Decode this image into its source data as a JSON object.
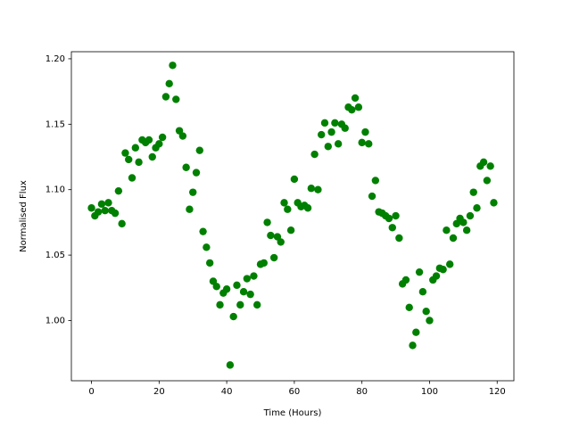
{
  "chart_data": {
    "type": "scatter",
    "x_label": "Time (Hours)",
    "y_label": "Normalised Flux",
    "x": [
      0,
      1,
      2,
      3,
      4,
      5,
      6,
      7,
      8,
      9,
      10,
      11,
      12,
      13,
      14,
      15,
      16,
      17,
      18,
      19,
      20,
      21,
      22,
      23,
      24,
      25,
      26,
      27,
      28,
      29,
      30,
      31,
      32,
      33,
      34,
      35,
      36,
      37,
      38,
      39,
      40,
      41,
      42,
      43,
      44,
      45,
      46,
      47,
      48,
      49,
      50,
      51,
      52,
      53,
      54,
      55,
      56,
      57,
      58,
      59,
      60,
      61,
      62,
      63,
      64,
      65,
      66,
      67,
      68,
      69,
      70,
      71,
      72,
      73,
      74,
      75,
      76,
      77,
      78,
      79,
      80,
      81,
      82,
      83,
      84,
      85,
      86,
      87,
      88,
      89,
      90,
      91,
      92,
      93,
      94,
      95,
      96,
      97,
      98,
      99,
      100,
      101,
      102,
      103,
      104,
      105,
      106,
      107,
      108,
      109,
      110,
      111,
      112,
      113,
      114,
      115,
      116,
      117,
      118,
      119
    ],
    "values": [
      1.086,
      1.08,
      1.083,
      1.089,
      1.084,
      1.09,
      1.084,
      1.082,
      1.099,
      1.074,
      1.128,
      1.123,
      1.109,
      1.132,
      1.121,
      1.138,
      1.136,
      1.138,
      1.125,
      1.132,
      1.135,
      1.14,
      1.171,
      1.181,
      1.195,
      1.169,
      1.145,
      1.141,
      1.117,
      1.085,
      1.098,
      1.113,
      1.13,
      1.068,
      1.056,
      1.044,
      1.03,
      1.026,
      1.012,
      1.021,
      1.024,
      0.966,
      1.003,
      1.027,
      1.012,
      1.022,
      1.032,
      1.02,
      1.034,
      1.012,
      1.043,
      1.044,
      1.075,
      1.065,
      1.048,
      1.064,
      1.06,
      1.09,
      1.085,
      1.069,
      1.108,
      1.09,
      1.087,
      1.088,
      1.086,
      1.101,
      1.127,
      1.1,
      1.142,
      1.151,
      1.133,
      1.144,
      1.151,
      1.135,
      1.15,
      1.147,
      1.163,
      1.161,
      1.17,
      1.163,
      1.136,
      1.144,
      1.135,
      1.095,
      1.107,
      1.083,
      1.082,
      1.08,
      1.078,
      1.071,
      1.08,
      1.063,
      1.028,
      1.031,
      1.01,
      0.981,
      0.991,
      1.037,
      1.022,
      1.007,
      1.0,
      1.031,
      1.034,
      1.04,
      1.039,
      1.069,
      1.043,
      1.063,
      1.074,
      1.078,
      1.075,
      1.069,
      1.08,
      1.098,
      1.086,
      1.118,
      1.121,
      1.107,
      1.118,
      1.09
    ],
    "color": "#008000",
    "xlim": [
      -5.95,
      124.95
    ],
    "xticks": [
      0,
      20,
      40,
      60,
      80,
      100,
      120
    ],
    "ylim": [
      0.954,
      1.2054
    ],
    "yticks": [
      {
        "value": 1.0,
        "label": "1.00"
      },
      {
        "value": 1.05,
        "label": "1.05"
      },
      {
        "value": 1.1,
        "label": "1.10"
      },
      {
        "value": 1.15,
        "label": "1.15"
      },
      {
        "value": 1.2,
        "label": "1.20"
      }
    ]
  }
}
